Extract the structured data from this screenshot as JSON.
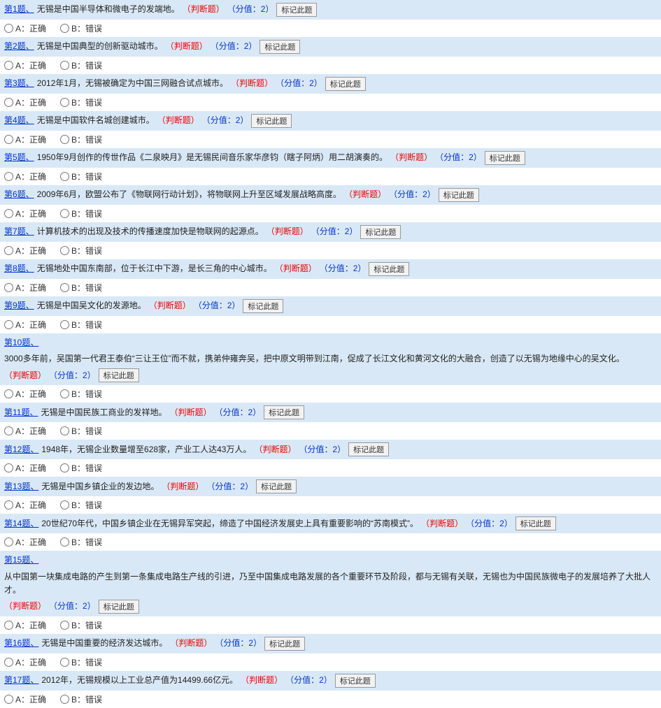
{
  "mark_btn_label": "标记此题",
  "opt_a": "A：正确",
  "opt_b": "B：错误",
  "questions": [
    {
      "num": "第1题、",
      "text": "无锡是中国半导体和微电子的发端地。",
      "type": "（判断题）",
      "score": "（分值：2）"
    },
    {
      "num": "第2题、",
      "text": "无锡是中国典型的创新驱动城市。",
      "type": "（判断题）",
      "score": "（分值：2）"
    },
    {
      "num": "第3题、",
      "text": "2012年1月，无锡被确定为中国三网融合试点城市。",
      "type": "（判断题）",
      "score": "（分值：2）"
    },
    {
      "num": "第4题、",
      "text": "无锡是中国软件名城创建城市。",
      "type": "（判断题）",
      "score": "（分值：2）"
    },
    {
      "num": "第5题、",
      "text": "1950年9月创作的传世作品《二泉映月》是无锡民间音乐家华彦钧（瞎子阿炳）用二胡演奏的。",
      "type": "（判断题）",
      "score": "（分值：2）"
    },
    {
      "num": "第6题、",
      "text": "2009年6月，欧盟公布了《物联网行动计划》，将物联网上升至区域发展战略高度。",
      "type": "（判断题）",
      "score": "（分值：2）"
    },
    {
      "num": "第7题、",
      "text": "计算机技术的出现及技术的传播速度加快是物联网的起源点。",
      "type": "（判断题）",
      "score": "（分值：2）"
    },
    {
      "num": "第8题、",
      "text": "无锡地处中国东南部，位于长江中下游，是长三角的中心城市。",
      "type": "（判断题）",
      "score": "（分值：2）"
    },
    {
      "num": "第9题、",
      "text": "无锡是中国吴文化的发源地。",
      "type": "（判断题）",
      "score": "（分值：2）"
    },
    {
      "num": "第10题、",
      "text": "3000多年前，吴国第一代君王泰伯“三让王位”而不就，携弟仲雍奔吴，把中原文明带到江南，促成了长江文化和黄河文化的大融合，创造了以无锡为地缘中心的吴文化。",
      "type": "（判断题）",
      "score": "（分值：2）"
    },
    {
      "num": "第11题、",
      "text": "无锡是中国民族工商业的发祥地。",
      "type": "（判断题）",
      "score": "（分值：2）"
    },
    {
      "num": "第12题、",
      "text": "1948年，无锡企业数量增至628家，产业工人达43万人。",
      "type": "（判断题）",
      "score": "（分值：2）"
    },
    {
      "num": "第13题、",
      "text": "无锡是中国乡镇企业的发边地。",
      "type": "（判断题）",
      "score": "（分值：2）"
    },
    {
      "num": "第14题、",
      "text": "20世纪70年代，中国乡镇企业在无锡异军突起，缔造了中国经济发展史上具有重要影响的“苏南模式”。",
      "type": "（判断题）",
      "score": "（分值：2）"
    },
    {
      "num": "第15题、",
      "text": "从中国第一块集成电路的产生到第一条集成电路生产线的引进，乃至中国集成电路发展的各个重要环节及阶段，都与无锡有关联，无锡也为中国民族微电子的发展培养了大批人才。",
      "type": "（判断题）",
      "score": "（分值：2）"
    },
    {
      "num": "第16题、",
      "text": "无锡是中国重要的经济发达城市。",
      "type": "（判断题）",
      "score": "（分值：2）"
    },
    {
      "num": "第17题、",
      "text": "2012年，无锡规模以上工业总产值为14499.66亿元。",
      "type": "（判断题）",
      "score": "（分值：2）"
    }
  ]
}
